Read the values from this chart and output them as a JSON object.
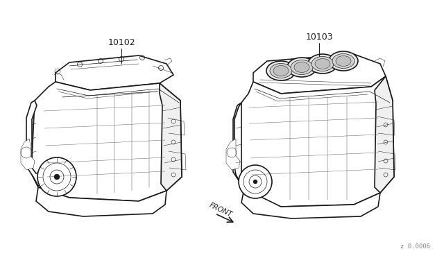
{
  "background_color": "#ffffff",
  "label_10102": "10102",
  "label_10103": "10103",
  "label_front": "FRONT",
  "watermark": "z 0.0006",
  "text_color": "#1a1a1a",
  "line_color": "#1a1a1a",
  "lw_outer": 1.2,
  "lw_inner": 0.5,
  "lw_detail": 0.35
}
